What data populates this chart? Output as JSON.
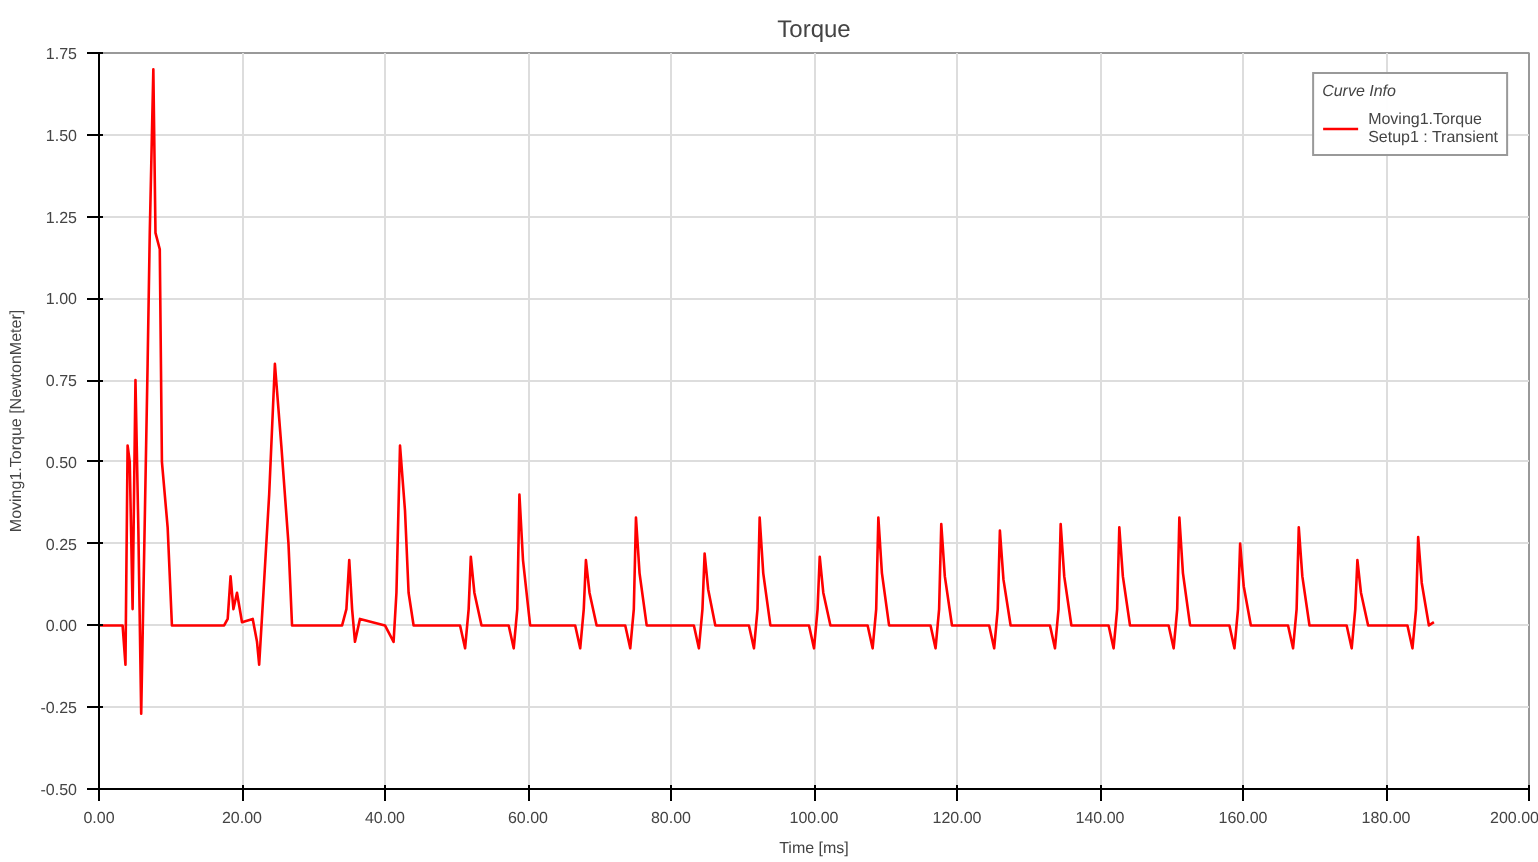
{
  "chart_data": {
    "type": "line",
    "title": "Torque",
    "xlabel": "Time [ms]",
    "ylabel": "Moving1.Torque [NewtonMeter]",
    "legend_title": "Curve Info",
    "series": [
      {
        "name": "Moving1.Torque\nSetup1 : Transient",
        "color": "#ff0000",
        "x": [
          0,
          3.3,
          3.7,
          4.0,
          4.3,
          4.7,
          5.1,
          5.5,
          5.9,
          6.3,
          6.8,
          7.1,
          7.6,
          7.9,
          8.5,
          8.8,
          9.6,
          10.2,
          17.5,
          18.0,
          18.4,
          18.8,
          19.3,
          20,
          21.5,
          22.1,
          22.4,
          23,
          23.8,
          24.6,
          25.5,
          26.5,
          27,
          34,
          34.6,
          35,
          35.4,
          35.8,
          36.5,
          40,
          41.2,
          41.6,
          42.1,
          42.8,
          43.3,
          44,
          50.5,
          51.2,
          51.7,
          52.0,
          52.5,
          53.5,
          57.3,
          58.0,
          58.5,
          58.8,
          59.3,
          60.3,
          66.6,
          67.3,
          67.8,
          68.1,
          68.6,
          69.6,
          73.6,
          74.3,
          74.8,
          75.1,
          75.6,
          76.6,
          83.2,
          83.9,
          84.4,
          84.7,
          85.2,
          86.2,
          90.9,
          91.6,
          92.1,
          92.4,
          92.9,
          93.9,
          99.3,
          100.0,
          100.5,
          100.8,
          101.3,
          102.3,
          107.5,
          108.2,
          108.7,
          109.0,
          109.5,
          110.5,
          116.3,
          117.0,
          117.5,
          117.8,
          118.3,
          119.3,
          124.5,
          125.2,
          125.7,
          126.0,
          126.5,
          127.5,
          133.0,
          133.7,
          134.2,
          134.5,
          135.0,
          136.0,
          141.2,
          141.9,
          142.4,
          142.7,
          143.2,
          144.2,
          149.6,
          150.3,
          150.8,
          151.1,
          151.6,
          152.6,
          158.1,
          158.8,
          159.3,
          159.6,
          160.1,
          161.1,
          166.3,
          167.0,
          167.5,
          167.8,
          168.3,
          169.3,
          174.5,
          175.2,
          175.7,
          176.0,
          176.5,
          177.5,
          183.0,
          183.7,
          184.2,
          184.5,
          185.0,
          186.0,
          186.7
        ],
        "values": [
          0,
          0,
          -0.12,
          0.55,
          0.5,
          0.05,
          0.75,
          0.3,
          -0.27,
          0.2,
          0.8,
          1.2,
          1.7,
          1.2,
          1.15,
          0.5,
          0.3,
          0,
          0,
          0.02,
          0.15,
          0.05,
          0.1,
          0.01,
          0.02,
          -0.05,
          -0.12,
          0.1,
          0.4,
          0.8,
          0.55,
          0.25,
          0,
          0,
          0.05,
          0.2,
          0.05,
          -0.05,
          0.02,
          0,
          -0.05,
          0.1,
          0.55,
          0.35,
          0.1,
          0,
          0,
          -0.07,
          0.05,
          0.21,
          0.1,
          0,
          0,
          -0.07,
          0.05,
          0.4,
          0.2,
          0,
          0,
          -0.07,
          0.05,
          0.2,
          0.1,
          0,
          0,
          -0.07,
          0.05,
          0.33,
          0.16,
          0,
          0,
          -0.07,
          0.05,
          0.22,
          0.11,
          0,
          0,
          -0.07,
          0.05,
          0.33,
          0.16,
          0,
          0,
          -0.07,
          0.05,
          0.21,
          0.1,
          0,
          0,
          -0.07,
          0.05,
          0.33,
          0.16,
          0,
          0,
          -0.07,
          0.05,
          0.31,
          0.15,
          0,
          0,
          -0.07,
          0.05,
          0.29,
          0.14,
          0,
          0,
          -0.07,
          0.05,
          0.31,
          0.15,
          0,
          0,
          -0.07,
          0.05,
          0.3,
          0.15,
          0,
          0,
          -0.07,
          0.05,
          0.33,
          0.16,
          0,
          0,
          -0.07,
          0.05,
          0.25,
          0.12,
          0,
          0,
          -0.07,
          0.05,
          0.3,
          0.15,
          0,
          0,
          -0.07,
          0.05,
          0.2,
          0.1,
          0,
          0,
          -0.07,
          0.05,
          0.27,
          0.13,
          0,
          0.01
        ]
      }
    ],
    "xlim": [
      0,
      200
    ],
    "ylim": [
      -0.5,
      1.75
    ],
    "xticks": [
      {
        "value": 0,
        "label": "0.00"
      },
      {
        "value": 20,
        "label": "20.00"
      },
      {
        "value": 40,
        "label": "40.00"
      },
      {
        "value": 60,
        "label": "60.00"
      },
      {
        "value": 80,
        "label": "80.00"
      },
      {
        "value": 100,
        "label": "100.00"
      },
      {
        "value": 120,
        "label": "120.00"
      },
      {
        "value": 140,
        "label": "140.00"
      },
      {
        "value": 160,
        "label": "160.00"
      },
      {
        "value": 180,
        "label": "180.00"
      },
      {
        "value": 200,
        "label": "200.00"
      }
    ],
    "yticks": [
      {
        "value": -0.5,
        "label": "-0.50"
      },
      {
        "value": -0.25,
        "label": "-0.25"
      },
      {
        "value": 0,
        "label": "0.00"
      },
      {
        "value": 0.25,
        "label": "0.25"
      },
      {
        "value": 0.5,
        "label": "0.50"
      },
      {
        "value": 0.75,
        "label": "0.75"
      },
      {
        "value": 1.0,
        "label": "1.00"
      },
      {
        "value": 1.25,
        "label": "1.25"
      },
      {
        "value": 1.5,
        "label": "1.50"
      },
      {
        "value": 1.75,
        "label": "1.75"
      }
    ],
    "grid": true,
    "legend": "top right",
    "marker": "none",
    "line_style": "solid"
  }
}
